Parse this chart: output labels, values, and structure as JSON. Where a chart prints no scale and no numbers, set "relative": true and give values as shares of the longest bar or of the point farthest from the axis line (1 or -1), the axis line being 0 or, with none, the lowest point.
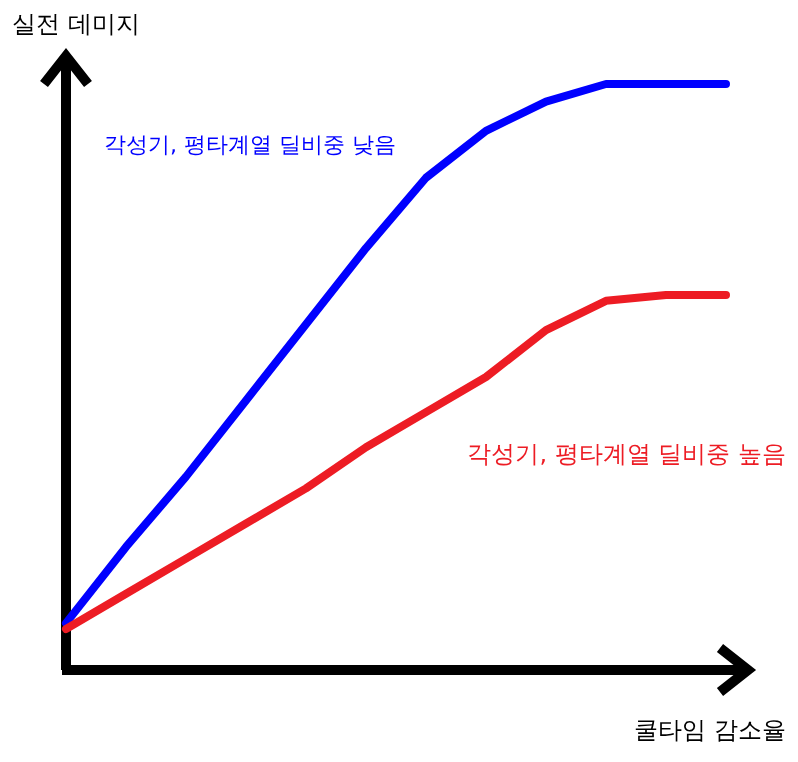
{
  "chart_data": {
    "type": "line",
    "relative": true,
    "xlabel": "쿨타임 감소율",
    "ylabel": "실전 데미지",
    "legend": false,
    "marker": "none",
    "line_style": "solid",
    "categories": [
      null,
      null,
      null,
      null,
      null,
      null,
      null,
      null,
      null,
      null,
      null,
      null
    ],
    "series": [
      {
        "name": "각성기, 평타계열 딜비중 낮음",
        "color": "#0000ff",
        "values": [
          0.08,
          0.21,
          0.33,
          0.46,
          0.59,
          0.72,
          0.84,
          0.92,
          0.97,
          1.0,
          1.0,
          1.0
        ]
      },
      {
        "name": "각성기, 평타계열 딜비중 높음",
        "color": "#ed1c24",
        "values": [
          0.07,
          0.13,
          0.19,
          0.25,
          0.31,
          0.38,
          0.44,
          0.5,
          0.58,
          0.63,
          0.64,
          0.64
        ]
      }
    ]
  }
}
